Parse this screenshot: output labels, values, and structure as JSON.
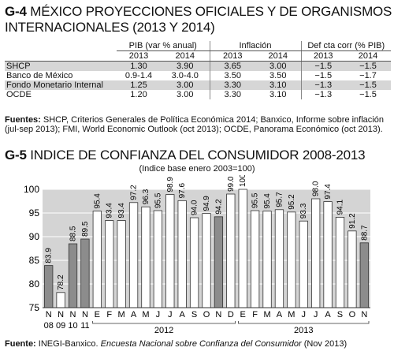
{
  "g4": {
    "code": "G-4",
    "title_line1": "MÉXICO PROYECCIONES OFICIALES Y DE ORGANISMOS",
    "title_line2": "INTERNACIONALES (2013 Y 2014)",
    "groups": [
      "PIB (var % anual)",
      "Inflación",
      "Def cta corr (% PIB)"
    ],
    "years": [
      "2013",
      "2014",
      "2013",
      "2014",
      "2013",
      "2014"
    ],
    "rows": [
      {
        "label": "SHCP",
        "values": [
          "1.30",
          "3.90",
          "3.65",
          "3.00",
          "−1.5",
          "−1.5"
        ]
      },
      {
        "label": "Banco de México",
        "values": [
          "0.9-1.4",
          "3.0-4.0",
          "3.50",
          "3.50",
          "−1.5",
          "−1.7"
        ]
      },
      {
        "label": "Fondo Monetario Internal",
        "values": [
          "1.25",
          "3.00",
          "3.30",
          "3.10",
          "−1.3",
          "−1.5"
        ]
      },
      {
        "label": "OCDE",
        "values": [
          "1.20",
          "3.00",
          "3.30",
          "3.10",
          "−1.3",
          "−1.5"
        ]
      }
    ],
    "source_label": "Fuentes:",
    "source_text": "SHCP, Criterios Generales de Política Económica 2014; Banxico, Informe sobre inflación (jul-sep 2013); FMI, World Economic Outlook (oct 2013); OCDE, Panorama Económico (oct 2013)."
  },
  "g5": {
    "code": "G-5",
    "title": "INDICE DE CONFIANZA DEL CONSUMIDOR 2008-2013",
    "subtitle": "(Indice base enero 2003=100)",
    "source_label": "Fuente:",
    "source_text_a": "INEGI-Banxico. ",
    "source_text_b": "Encuesta Nacional sobre Confianza del Consumidor",
    "source_text_c": " (Nov 2013)"
  },
  "chart_data": {
    "type": "bar",
    "title": "INDICE DE CONFIANZA DEL CONSUMIDOR 2008-2013",
    "subtitle": "(Indice base enero 2003=100)",
    "ylim": [
      75,
      100
    ],
    "yticks": [
      75,
      80,
      85,
      90,
      95,
      100
    ],
    "grid": true,
    "categories": [
      "N",
      "N",
      "N",
      "N",
      "E",
      "F",
      "M",
      "A",
      "M",
      "J",
      "J",
      "A",
      "S",
      "O",
      "N",
      "D",
      "E",
      "F",
      "M",
      "A",
      "M",
      "J",
      "J",
      "A",
      "S",
      "O",
      "N"
    ],
    "year_labels": [
      "08",
      "09",
      "10",
      "11"
    ],
    "group_labels": [
      {
        "label": "2012",
        "from": 4,
        "to": 15
      },
      {
        "label": "2013",
        "from": 16,
        "to": 26
      }
    ],
    "values": [
      83.9,
      78.2,
      88.5,
      89.5,
      95.4,
      93.4,
      93.4,
      97.2,
      96.3,
      95.5,
      98.9,
      97.6,
      94.0,
      94.9,
      94.2,
      99.0,
      100.0,
      95.5,
      95.4,
      95.7,
      95.2,
      93.3,
      98.0,
      97.4,
      94.1,
      91.2,
      88.7
    ],
    "value_labels": [
      "83.9",
      "78.2",
      "88.5",
      "89.5",
      "95.4",
      "93.4",
      "93.4",
      "97.2",
      "96.3",
      "95.5",
      "98.9",
      "97.6",
      "94.0",
      "94.9",
      "94.2",
      "99.0",
      "100.0",
      "95.5",
      "95.4",
      "95.7",
      "95.2",
      "93.3",
      "98.0",
      "97.4",
      "94.1",
      "91.2",
      "88.7"
    ],
    "fills": [
      "grey",
      "white",
      "grey",
      "grey",
      "white",
      "white",
      "white",
      "white",
      "white",
      "white",
      "white",
      "white",
      "white",
      "white",
      "grey",
      "white",
      "white",
      "white",
      "white",
      "white",
      "white",
      "white",
      "white",
      "white",
      "white",
      "white",
      "grey"
    ],
    "colors": {
      "grey": "#8c8c8c",
      "white": "#ffffff",
      "background": "#d4d4d4"
    }
  }
}
